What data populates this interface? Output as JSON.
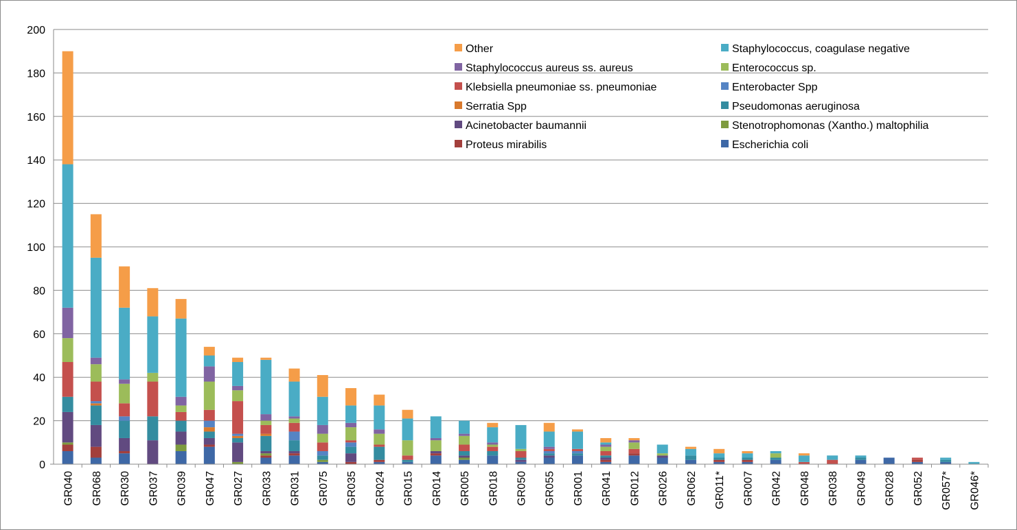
{
  "chart_data": {
    "type": "bar",
    "stacked": true,
    "title": "",
    "xlabel": "",
    "ylabel": "",
    "ylim": [
      0,
      200
    ],
    "yticks": [
      0,
      20,
      40,
      60,
      80,
      100,
      120,
      140,
      160,
      180,
      200
    ],
    "grid": true,
    "legend_position": "top-right",
    "categories": [
      "GR040",
      "GR068",
      "GR030",
      "GR037",
      "GR039",
      "GR047",
      "GR027",
      "GR033",
      "GR031",
      "GR075",
      "GR035",
      "GR024",
      "GR015",
      "GR014",
      "GR005",
      "GR018",
      "GR050",
      "GR055",
      "GR001",
      "GR041",
      "GR012",
      "GR026",
      "GR062",
      "GR011*",
      "GR007",
      "GR042",
      "GR048",
      "GR038",
      "GR049",
      "GR028",
      "GR052",
      "GR057*",
      "GR046*"
    ],
    "series": [
      {
        "name": "Escherichia coli",
        "color": "#3e68a6",
        "values": [
          6,
          3,
          5,
          0,
          6,
          8,
          0,
          3,
          4,
          1,
          0,
          1,
          1,
          4,
          2,
          4,
          1,
          3,
          4,
          1,
          4,
          3,
          2,
          1,
          1,
          2,
          0,
          0,
          2,
          3,
          1,
          1,
          0
        ]
      },
      {
        "name": "Proteus mirabilis",
        "color": "#a33f3c",
        "values": [
          3,
          5,
          1,
          0,
          0,
          1,
          0,
          1,
          1,
          0,
          1,
          1,
          0,
          1,
          0,
          0,
          0,
          0,
          0,
          1,
          1,
          0,
          0,
          1,
          1,
          0,
          0,
          0,
          0,
          0,
          1,
          0,
          0
        ]
      },
      {
        "name": "Stenotrophomonas (Xantho.) maltophilia",
        "color": "#7e9b3f",
        "values": [
          1,
          0,
          0,
          0,
          3,
          0,
          1,
          1,
          0,
          1,
          0,
          0,
          0,
          0,
          1,
          0,
          0,
          0,
          0,
          0,
          0,
          0,
          0,
          0,
          0,
          0,
          0,
          0,
          0,
          0,
          0,
          0,
          0
        ]
      },
      {
        "name": "Acinetobacter baumannii",
        "color": "#614a80",
        "values": [
          14,
          10,
          6,
          11,
          6,
          3,
          9,
          1,
          1,
          0,
          4,
          0,
          0,
          1,
          1,
          0,
          1,
          1,
          0,
          1,
          0,
          1,
          0,
          0,
          0,
          0,
          0,
          0,
          0,
          0,
          0,
          0,
          0
        ]
      },
      {
        "name": "Pseudomonas aeruginosa",
        "color": "#348ca0",
        "values": [
          7,
          9,
          8,
          11,
          5,
          3,
          2,
          7,
          5,
          2,
          3,
          6,
          1,
          0,
          2,
          2,
          1,
          1,
          1,
          1,
          0,
          0,
          2,
          1,
          1,
          1,
          0,
          0,
          1,
          0,
          0,
          1,
          0
        ]
      },
      {
        "name": "Serratia Spp",
        "color": "#d8792d",
        "values": [
          0,
          1,
          0,
          0,
          0,
          2,
          1,
          1,
          0,
          0,
          0,
          0,
          0,
          0,
          0,
          0,
          0,
          0,
          0,
          0,
          0,
          0,
          0,
          0,
          0,
          0,
          0,
          0,
          0,
          0,
          0,
          0,
          0
        ]
      },
      {
        "name": "Enterobacter Spp",
        "color": "#5584c4",
        "values": [
          0,
          1,
          2,
          0,
          0,
          3,
          1,
          0,
          4,
          2,
          2,
          0,
          0,
          0,
          0,
          0,
          0,
          1,
          1,
          0,
          0,
          0,
          0,
          0,
          0,
          0,
          0,
          0,
          0,
          0,
          0,
          0,
          0
        ]
      },
      {
        "name": "Klebsiella pneumoniae ss. pneumoniae",
        "color": "#c4504d",
        "values": [
          16,
          9,
          6,
          16,
          4,
          5,
          15,
          4,
          4,
          4,
          1,
          1,
          2,
          0,
          3,
          2,
          3,
          1,
          1,
          2,
          2,
          0,
          0,
          0,
          0,
          0,
          1,
          2,
          0,
          0,
          1,
          0,
          0
        ]
      },
      {
        "name": "Enterococcus sp.",
        "color": "#9cbc5a",
        "values": [
          11,
          8,
          9,
          4,
          3,
          13,
          5,
          2,
          2,
          4,
          6,
          5,
          7,
          5,
          4,
          1,
          1,
          0,
          0,
          2,
          3,
          1,
          0,
          0,
          0,
          2,
          0,
          0,
          0,
          0,
          0,
          0,
          0
        ]
      },
      {
        "name": "Staphylococcus aureus ss. aureus",
        "color": "#8064a2",
        "values": [
          14,
          3,
          2,
          0,
          4,
          7,
          2,
          3,
          1,
          4,
          2,
          2,
          0,
          1,
          1,
          1,
          0,
          1,
          0,
          1,
          1,
          0,
          0,
          0,
          0,
          0,
          0,
          0,
          0,
          0,
          0,
          0,
          0
        ]
      },
      {
        "name": "Staphylococcus, coagulase negative",
        "color": "#4aacc5",
        "values": [
          66,
          46,
          33,
          26,
          36,
          5,
          11,
          25,
          16,
          13,
          8,
          11,
          10,
          10,
          6,
          7,
          11,
          7,
          8,
          1,
          0,
          4,
          3,
          2,
          2,
          1,
          3,
          2,
          1,
          0,
          0,
          1,
          1
        ]
      },
      {
        "name": "Other",
        "color": "#f59d48",
        "values": [
          52,
          20,
          19,
          13,
          9,
          4,
          2,
          1,
          6,
          10,
          8,
          5,
          4,
          0,
          0,
          2,
          0,
          4,
          1,
          2,
          1,
          0,
          1,
          2,
          1,
          0,
          1,
          0,
          0,
          0,
          0,
          0,
          0
        ]
      }
    ],
    "legend_entries": [
      "Other",
      "Staphylococcus, coagulase negative",
      "Staphylococcus aureus ss. aureus",
      "Enterococcus sp.",
      "Klebsiella pneumoniae ss. pneumoniae",
      "Enterobacter Spp",
      "Serratia Spp",
      "Pseudomonas aeruginosa",
      "Acinetobacter baumannii",
      "Stenotrophomonas (Xantho.) maltophilia",
      "Proteus mirabilis",
      "Escherichia coli"
    ]
  }
}
